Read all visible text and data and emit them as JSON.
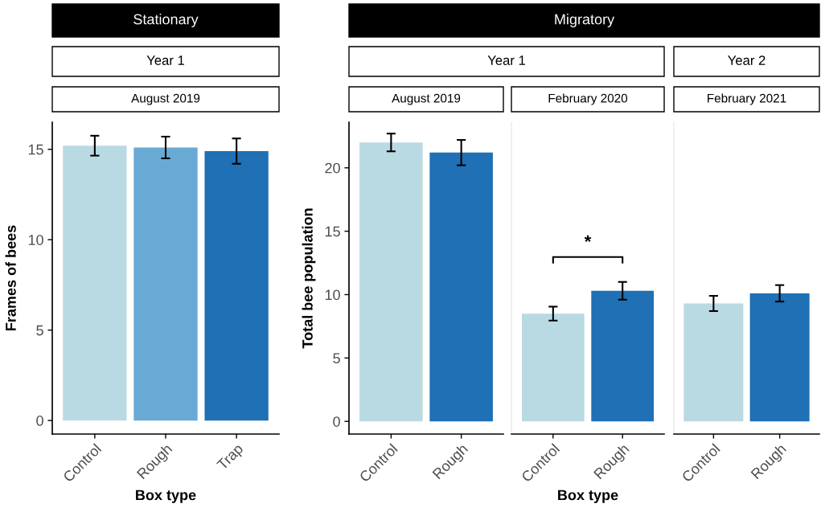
{
  "chart_data": [
    {
      "type": "bar",
      "title": "August 2019",
      "subtitle": "Year 1",
      "annotations": [
        "Stationary"
      ],
      "xlabel": "Box type",
      "ylabel": "Frames of bees",
      "categories": [
        "Control",
        "Rough",
        "Trap"
      ],
      "values": [
        15.2,
        15.1,
        14.9
      ],
      "errors": [
        0.55,
        0.6,
        0.7
      ],
      "colors": [
        "#b9dae3",
        "#68aad4",
        "#1f70b4"
      ],
      "ylim": [
        -0.75,
        16.5
      ],
      "yticks": [
        0,
        5,
        10,
        15
      ],
      "grid": false
    },
    {
      "type": "bar",
      "title": "August 2019",
      "subtitle": "Year 1",
      "annotations": [
        "Migratory"
      ],
      "ylabel": "Total bee population",
      "categories": [
        "Control",
        "Rough"
      ],
      "values": [
        22.0,
        21.2
      ],
      "errors": [
        0.7,
        1.0
      ],
      "colors": [
        "#b9dae3",
        "#1f70b4"
      ],
      "ylim": [
        -1,
        23.6
      ],
      "yticks": [
        0,
        5,
        10,
        15,
        20
      ],
      "grid": false
    },
    {
      "type": "bar",
      "title": "February 2020",
      "annotations": [
        "*"
      ],
      "xlabel": "Box type",
      "categories": [
        "Control",
        "Rough"
      ],
      "values": [
        8.5,
        10.3
      ],
      "errors": [
        0.55,
        0.7
      ],
      "colors": [
        "#b9dae3",
        "#1f70b4"
      ],
      "ylim": [
        -1,
        23.6
      ],
      "yticks": [
        0,
        5,
        10,
        15,
        20
      ],
      "tick_labels": "x",
      "grid": false
    },
    {
      "type": "bar",
      "title": "February 2021",
      "subtitle": "Year 2",
      "categories": [
        "Control",
        "Rough"
      ],
      "values": [
        9.3,
        10.1
      ],
      "errors": [
        0.6,
        0.65
      ],
      "colors": [
        "#b9dae3",
        "#1f70b4"
      ],
      "ylim": [
        -1,
        23.6
      ],
      "yticks": [
        0,
        5,
        10,
        15,
        20
      ],
      "tick_labels": "x",
      "grid": false
    }
  ]
}
